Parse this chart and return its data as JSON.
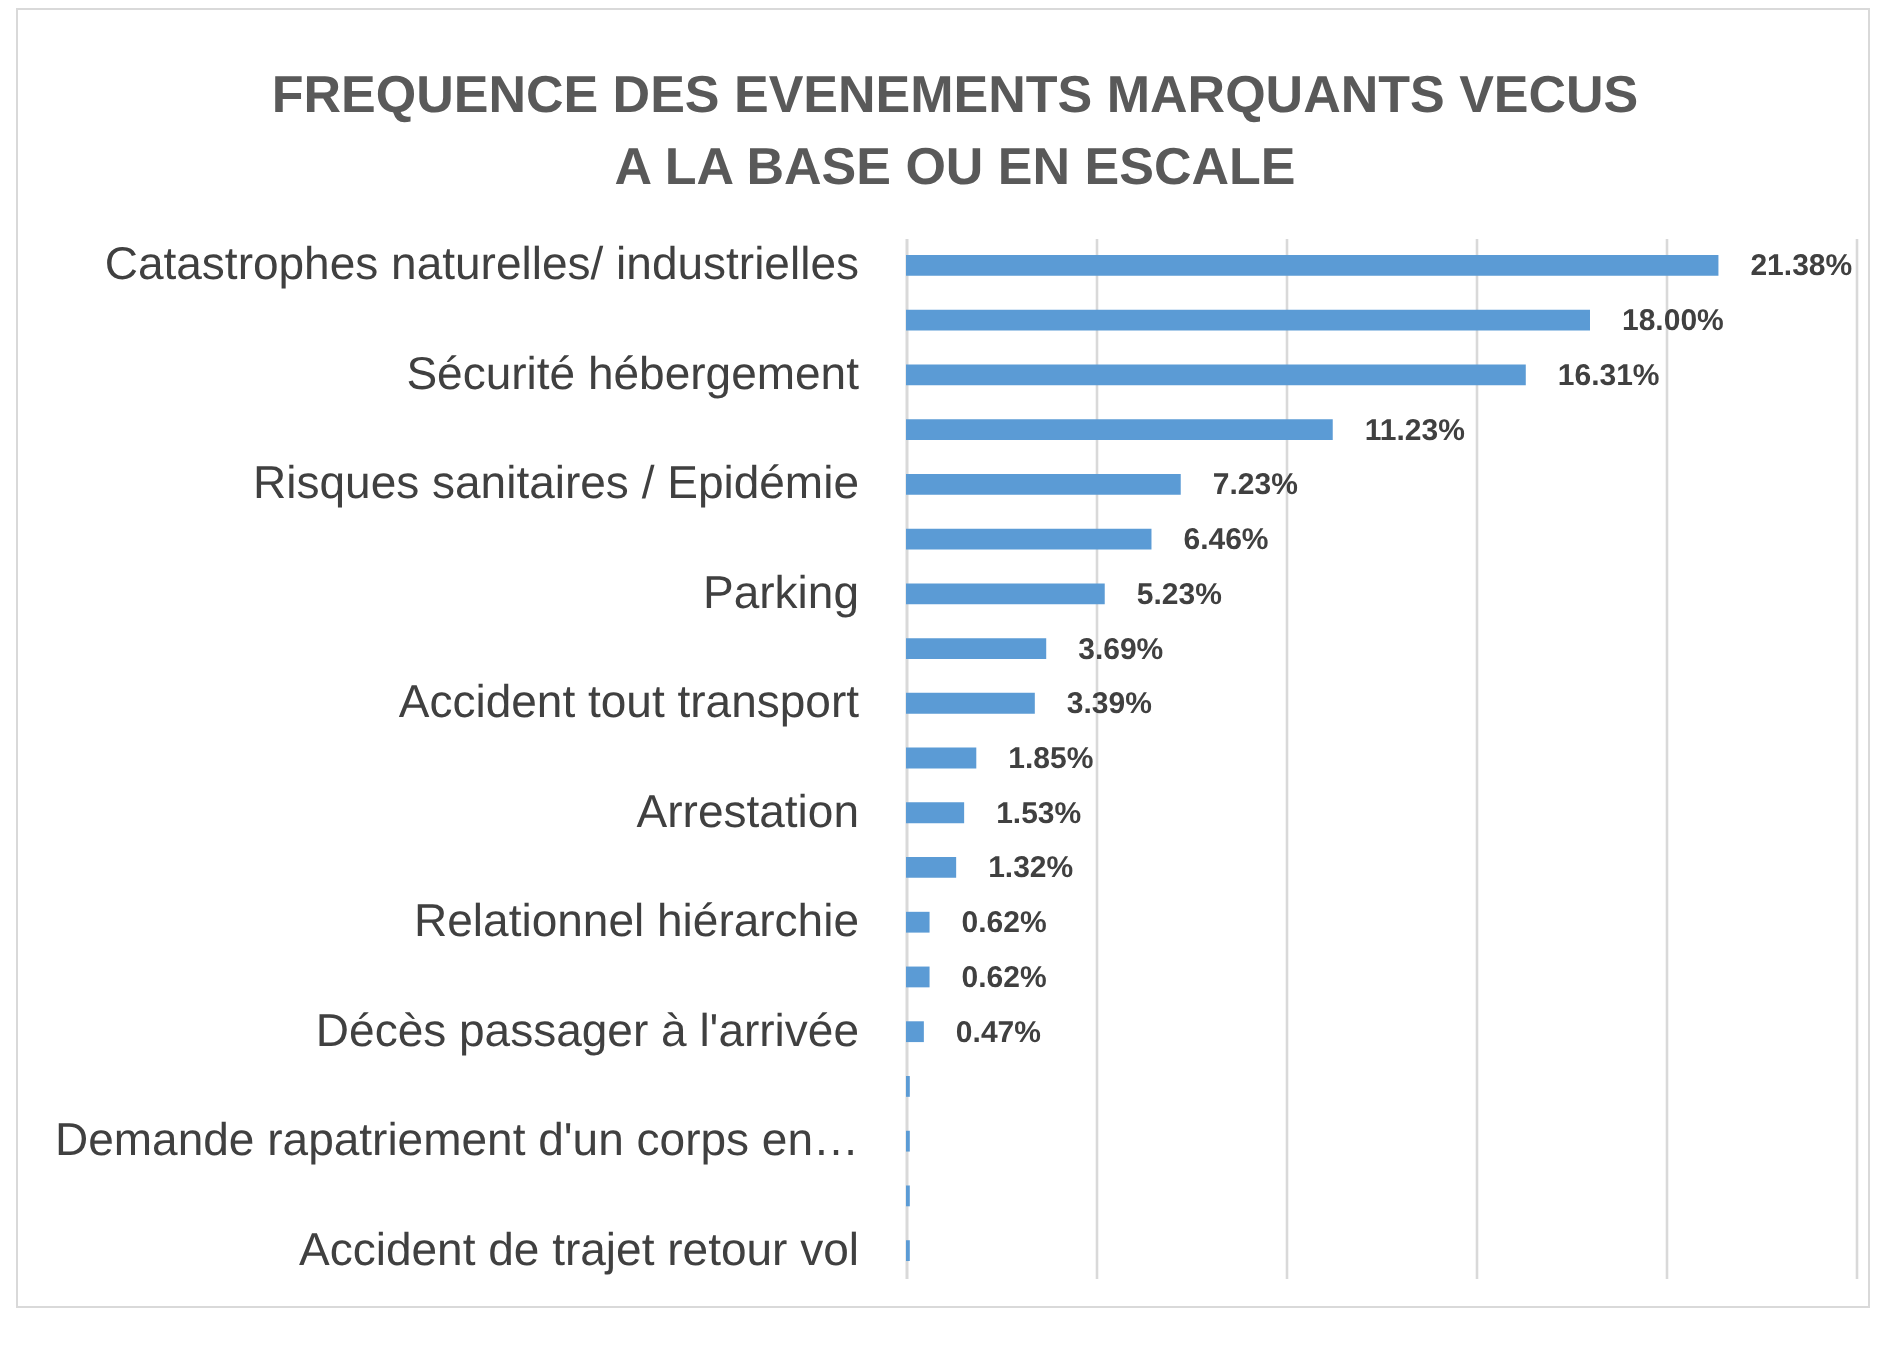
{
  "chart_data": {
    "type": "bar",
    "orientation": "horizontal",
    "title": "FREQUENCE DES EVENEMENTS MARQUANTS VECUS\nA LA BASE OU EN ESCALE",
    "categories": [
      "Catastrophes naturelles/ industrielles",
      null,
      "Sécurité hébergement",
      null,
      "Risques sanitaires / Epidémie",
      null,
      "Parking",
      null,
      "Accident tout transport",
      null,
      "Arrestation",
      null,
      "Relationnel hiérarchie",
      null,
      "Décès passager à l'arrivée",
      null,
      "Demande rapatriement d'un corps en…",
      null,
      "Accident de trajet retour vol"
    ],
    "values": [
      21.38,
      18.0,
      16.31,
      11.23,
      7.23,
      6.46,
      5.23,
      3.69,
      3.39,
      1.85,
      1.53,
      1.32,
      0.62,
      0.62,
      0.47,
      0.1,
      0.1,
      0.1,
      0.1
    ],
    "value_labels": [
      "21.38%",
      "18.00%",
      "16.31%",
      "11.23%",
      "7.23%",
      "6.46%",
      "5.23%",
      "3.69%",
      "3.39%",
      "1.85%",
      "1.53%",
      "1.32%",
      "0.62%",
      "0.62%",
      "0.47%",
      null,
      null,
      null,
      null
    ],
    "color": "#5b9bd5",
    "xlim": [
      0,
      25
    ],
    "xticks": [
      {
        "value": 0,
        "label": null
      },
      {
        "value": 5,
        "label": null
      },
      {
        "value": 10,
        "label": null
      },
      {
        "value": 15,
        "label": null
      },
      {
        "value": 20,
        "label": null
      },
      {
        "value": 25,
        "label": null
      }
    ],
    "grid": "x",
    "tick_labels": "y"
  }
}
